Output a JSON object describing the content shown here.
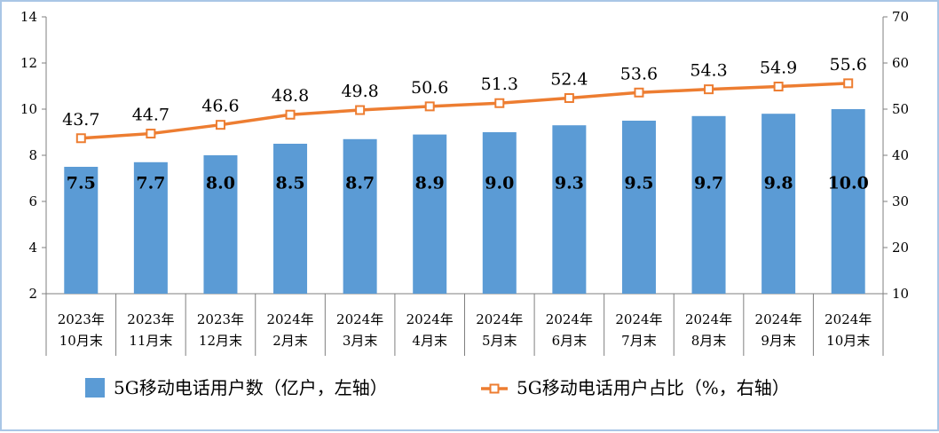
{
  "chart_data": {
    "type": "bar+line",
    "categories": [
      [
        "2023年",
        "10月末"
      ],
      [
        "2023年",
        "11月末"
      ],
      [
        "2023年",
        "12月末"
      ],
      [
        "2024年",
        "2月末"
      ],
      [
        "2024年",
        "3月末"
      ],
      [
        "2024年",
        "4月末"
      ],
      [
        "2024年",
        "5月末"
      ],
      [
        "2024年",
        "6月末"
      ],
      [
        "2024年",
        "7月末"
      ],
      [
        "2024年",
        "8月末"
      ],
      [
        "2024年",
        "9月末"
      ],
      [
        "2024年",
        "10月末"
      ]
    ],
    "series": [
      {
        "name": "5G移动电话用户数（亿户，左轴）",
        "type": "bar",
        "axis": "left",
        "values": [
          7.5,
          7.7,
          8.0,
          8.5,
          8.7,
          8.9,
          9.0,
          9.3,
          9.5,
          9.7,
          9.8,
          10.0
        ],
        "labels": [
          "7.5",
          "7.7",
          "8.0",
          "8.5",
          "8.7",
          "8.9",
          "9.0",
          "9.3",
          "9.5",
          "9.7",
          "9.8",
          "10.0"
        ]
      },
      {
        "name": "5G移动电话用户占比（%，右轴）",
        "type": "line",
        "axis": "right",
        "values": [
          43.7,
          44.7,
          46.6,
          48.8,
          49.8,
          50.6,
          51.3,
          52.4,
          53.6,
          54.3,
          54.9,
          55.6
        ],
        "labels": [
          "43.7",
          "44.7",
          "46.6",
          "48.8",
          "49.8",
          "50.6",
          "51.3",
          "52.4",
          "53.6",
          "54.3",
          "54.9",
          "55.6"
        ]
      }
    ],
    "y_left": {
      "lim": [
        2,
        14
      ],
      "ticks": [
        "2",
        "4",
        "6",
        "8",
        "10",
        "12",
        "14"
      ]
    },
    "y_right": {
      "lim": [
        10,
        70
      ],
      "ticks": [
        "10",
        "20",
        "30",
        "40",
        "50",
        "60",
        "70"
      ]
    },
    "legend_position": "bottom",
    "colors": {
      "bar": "#5b9bd5",
      "line": "#ed7d31",
      "frame": "#a9c6e6"
    }
  }
}
